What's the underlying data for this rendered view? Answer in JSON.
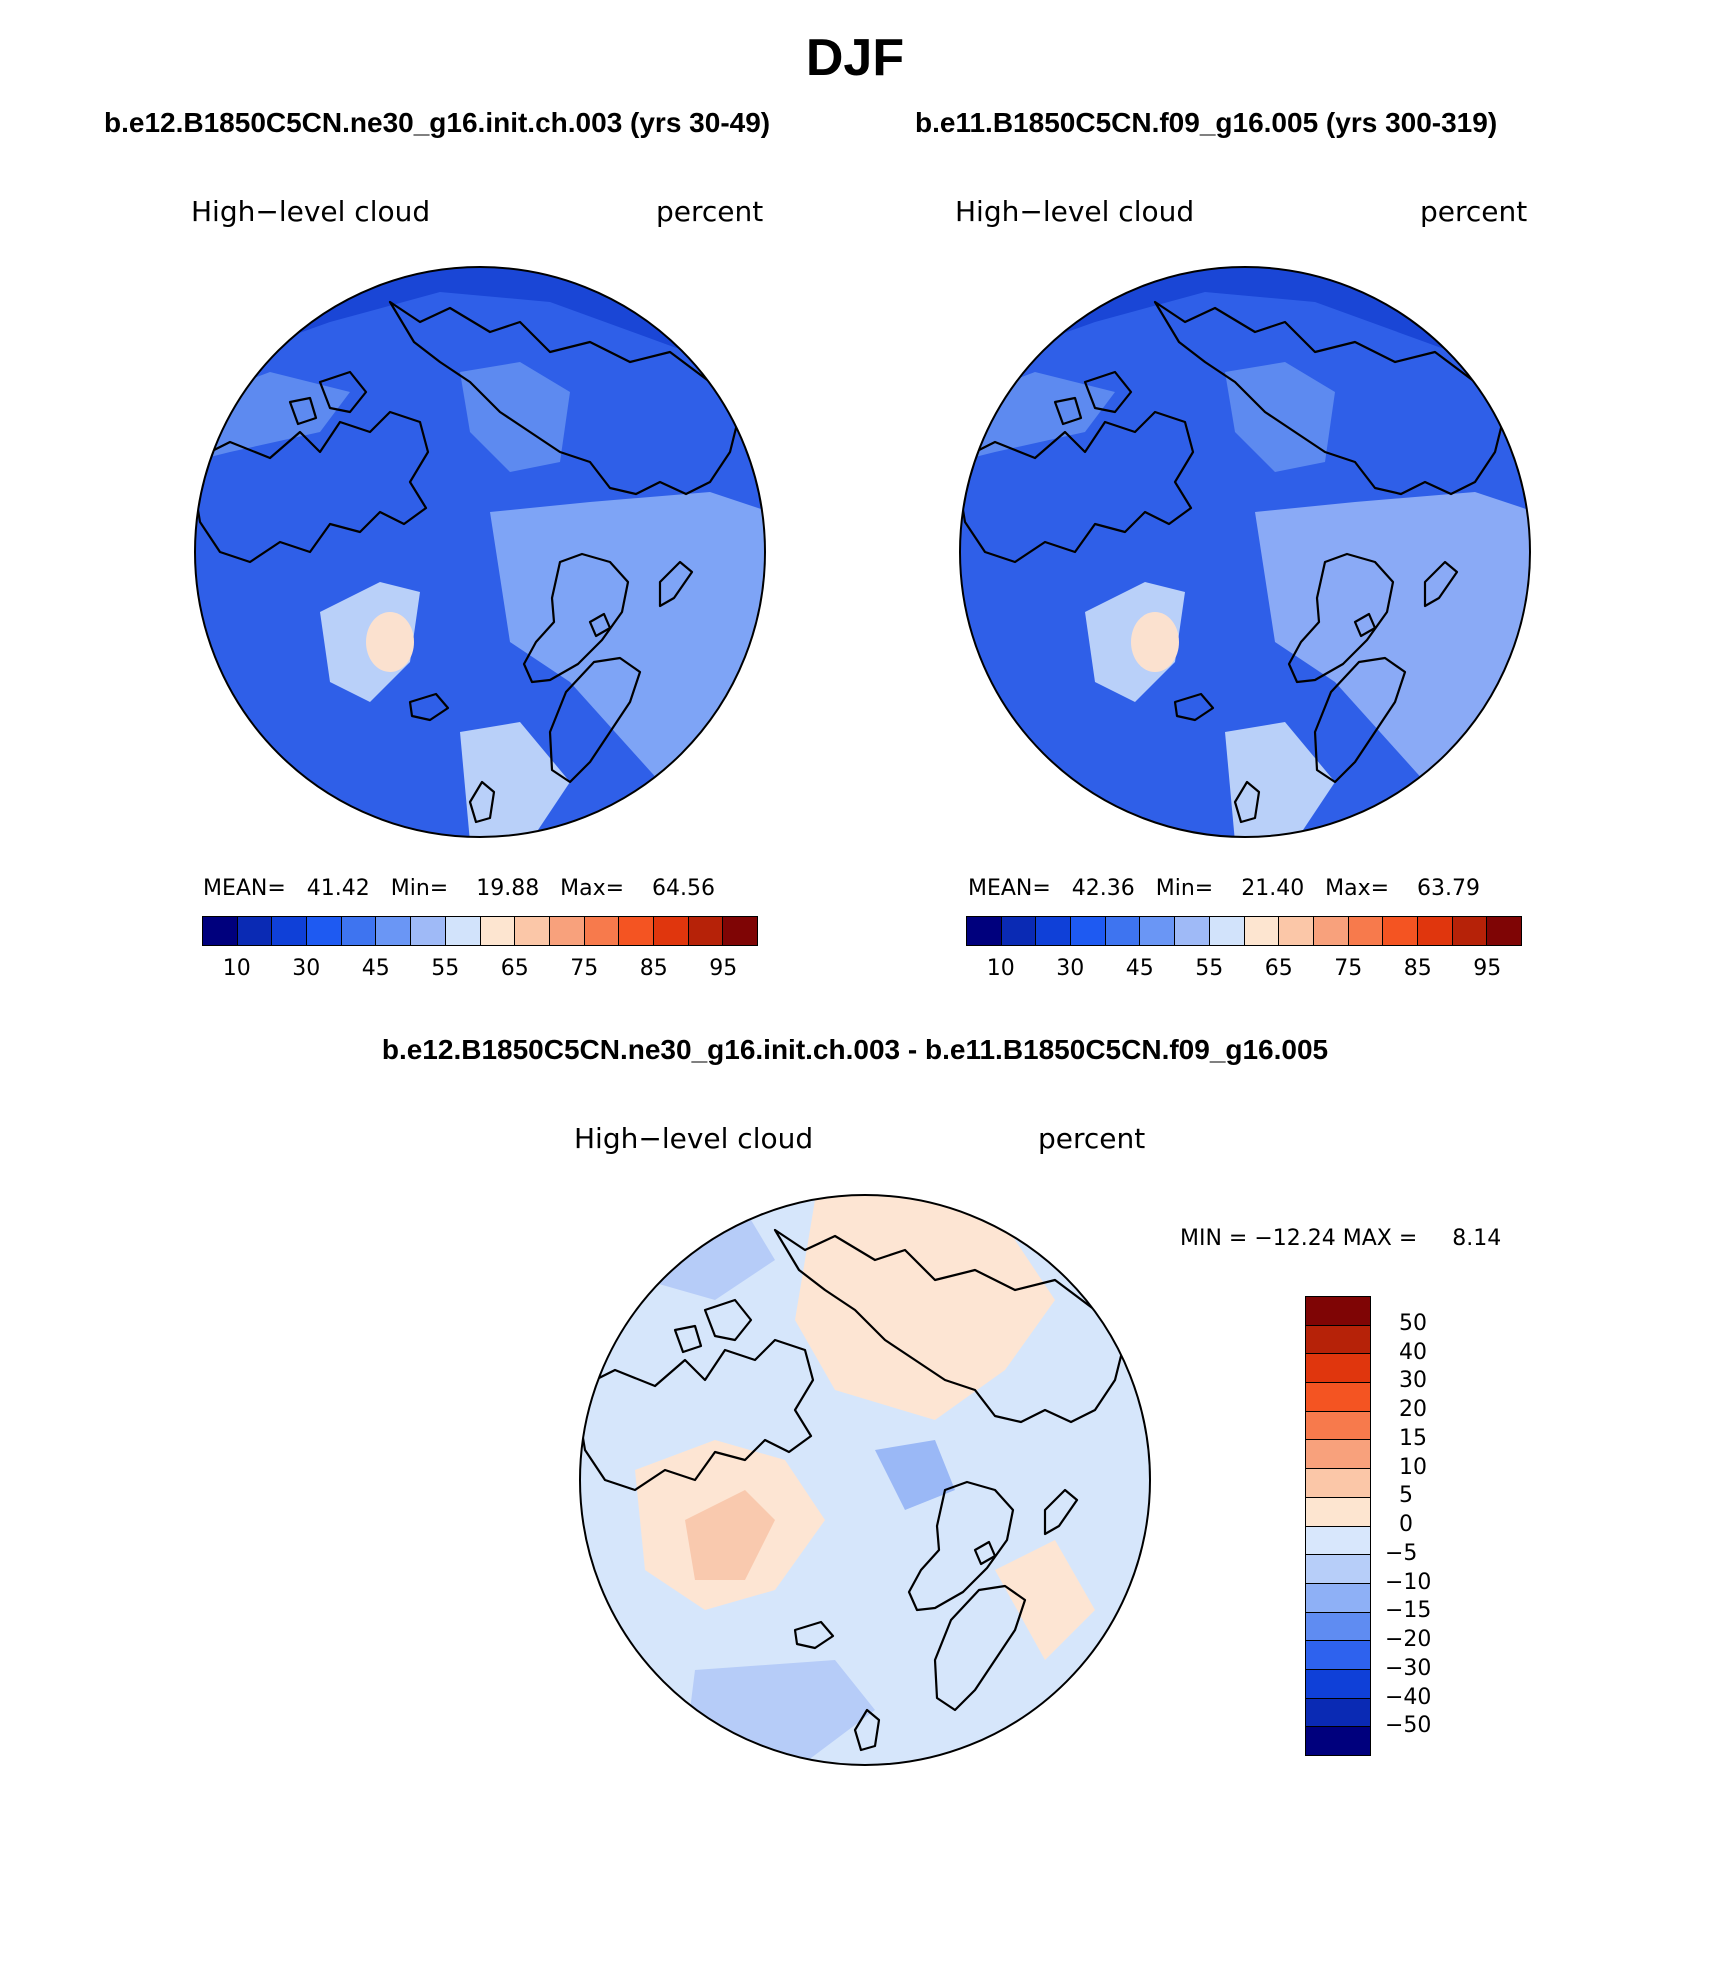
{
  "main_title": "DJF",
  "panels": [
    {
      "case_title": "b.e12.B1850C5CN.ne30_g16.init.ch.003 (yrs 30-49)",
      "variable": "High−level cloud",
      "units": "percent",
      "stats": "MEAN=   41.42   Min=    19.88   Max=    64.56",
      "colorbar_colors": [
        "#00007d",
        "#0a2ab4",
        "#0f40d8",
        "#1e5af2",
        "#3e74f0",
        "#6a96f5",
        "#9fbaf7",
        "#d2e3fb",
        "#fde5d0",
        "#fbc7a8",
        "#f8a17c",
        "#f77a4c",
        "#f45422",
        "#e0360d",
        "#b62208",
        "#7f0505"
      ],
      "colorbar_labels": [
        "10",
        "30",
        "45",
        "55",
        "65",
        "75",
        "85",
        "95"
      ],
      "map_colors": {
        "ocean": "#2f5fe8",
        "mid": "#5d8af0",
        "light": "#7ea4f6",
        "pale": "#b9d0f9",
        "warm": "#fbe1cf",
        "dark": "#1a46d6"
      }
    },
    {
      "case_title": "b.e11.B1850C5CN.f09_g16.005 (yrs 300-319)",
      "variable": "High−level cloud",
      "units": "percent",
      "stats": "MEAN=   42.36   Min=    21.40   Max=    63.79",
      "colorbar_colors": [
        "#00007d",
        "#0a2ab4",
        "#0f40d8",
        "#1e5af2",
        "#3e74f0",
        "#6a96f5",
        "#9fbaf7",
        "#d2e3fb",
        "#fde5d0",
        "#fbc7a8",
        "#f8a17c",
        "#f77a4c",
        "#f45422",
        "#e0360d",
        "#b62208",
        "#7f0505"
      ],
      "colorbar_labels": [
        "10",
        "30",
        "45",
        "55",
        "65",
        "75",
        "85",
        "95"
      ],
      "map_colors": {
        "ocean": "#2f5fe8",
        "mid": "#5d8af0",
        "light": "#8aaaf6",
        "pale": "#b9d0f9",
        "warm": "#fbe1cf",
        "dark": "#1a46d6"
      }
    }
  ],
  "diff_panel": {
    "title": "b.e12.B1850C5CN.ne30_g16.init.ch.003 - b.e11.B1850C5CN.f09_g16.005",
    "variable": "High−level cloud",
    "units": "percent",
    "stats": "MIN = −12.24 MAX =     8.14",
    "colorbar_colors": [
      "#7f0505",
      "#b62208",
      "#e0360d",
      "#f45422",
      "#f77a4c",
      "#f8a17c",
      "#fbc7a8",
      "#fde5d0",
      "#d8e7fc",
      "#b7cef9",
      "#8eb0f6",
      "#5f8cf2",
      "#2e62ee",
      "#0f40d8",
      "#0a2ab4",
      "#00007d"
    ],
    "colorbar_labels": [
      "50",
      "40",
      "30",
      "20",
      "15",
      "10",
      "5",
      "0",
      "−5",
      "−10",
      "−15",
      "−20",
      "−30",
      "−40",
      "−50"
    ],
    "map_colors": {
      "base": "#d6e6fb",
      "warm": "#fde5d3",
      "warmer": "#f9c9ae",
      "cool": "#b6ccf8",
      "cooler": "#9ab8f6"
    }
  }
}
